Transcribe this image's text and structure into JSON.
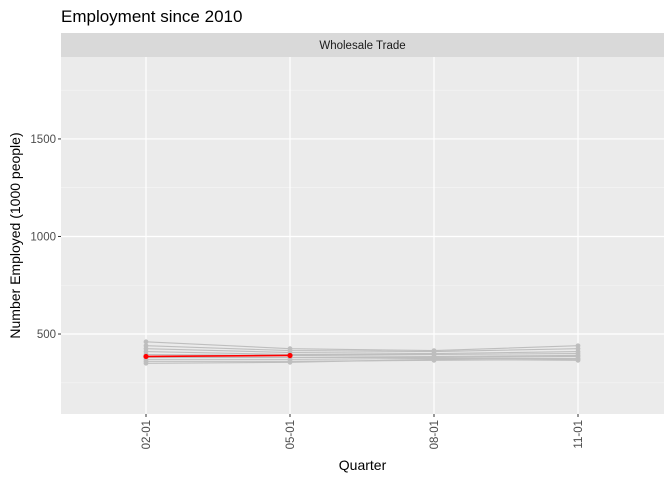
{
  "chart_data": {
    "type": "line",
    "title": "Employment since 2010",
    "facet": "Wholesale Trade",
    "xlabel": "Quarter",
    "ylabel": "Number Employed (1000 people)",
    "categories": [
      "02-01",
      "05-01",
      "08-01",
      "11-01"
    ],
    "y_ticks": [
      500,
      1000,
      1500
    ],
    "ylim": [
      90,
      1920
    ],
    "grid": true,
    "background_series_color": "#bebebe",
    "highlight_color": "#ff0000",
    "background_series": [
      {
        "values": [
          460,
          425,
          415,
          440
        ]
      },
      {
        "values": [
          440,
          415,
          410,
          425
        ]
      },
      {
        "values": [
          425,
          405,
          400,
          410
        ]
      },
      {
        "values": [
          410,
          395,
          395,
          400
        ]
      },
      {
        "values": [
          395,
          390,
          385,
          390
        ]
      },
      {
        "values": [
          380,
          380,
          380,
          385
        ]
      },
      {
        "values": [
          370,
          370,
          375,
          375
        ]
      },
      {
        "values": [
          360,
          360,
          365,
          370
        ]
      },
      {
        "values": [
          350,
          355,
          370,
          365
        ]
      }
    ],
    "highlight_series": {
      "values": [
        385,
        390
      ]
    }
  }
}
